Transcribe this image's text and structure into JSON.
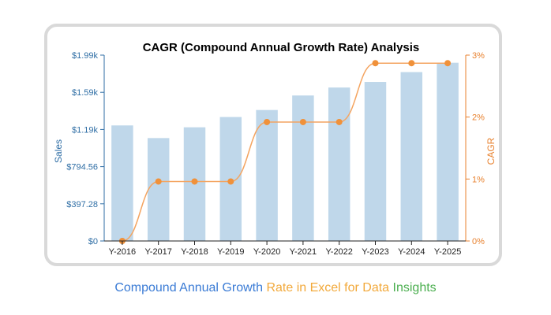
{
  "caption": {
    "part1": "Compound Annual Growth ",
    "part2": "Rate in Excel for Data ",
    "part3": "Insights",
    "colors": [
      "#3a7bd5",
      "#f2a93b",
      "#4caf50"
    ]
  },
  "colors": {
    "bar": "#bfd7ea",
    "line": "#f4a460",
    "marker": "#f0913a",
    "left_axis": "#2f6ea5",
    "right_axis": "#e8822f"
  },
  "chart_data": {
    "type": "bar",
    "title": "CAGR (Compound Annual Growth Rate) Analysis",
    "categories": [
      "Y-2016",
      "Y-2017",
      "Y-2018",
      "Y-2019",
      "Y-2020",
      "Y-2021",
      "Y-2022",
      "Y-2023",
      "Y-2024",
      "Y-2025"
    ],
    "ylabel": "Sales",
    "y2label": "CAGR",
    "ylim": [
      0,
      1986.4
    ],
    "y2lim": [
      0,
      3
    ],
    "y_ticks": [
      "$0",
      "$397.28",
      "$794.56",
      "$1.19k",
      "$1.59k",
      "$1.99k"
    ],
    "y2_ticks": [
      "0%",
      "1%",
      "2%",
      "3%"
    ],
    "series": [
      {
        "type": "bar",
        "axis": "left",
        "values": [
          1235,
          1100,
          1215,
          1325,
          1400,
          1555,
          1640,
          1700,
          1805,
          1905
        ]
      },
      {
        "type": "line",
        "axis": "right",
        "smooth": true,
        "values": [
          0,
          0.96,
          0.96,
          0.96,
          1.92,
          1.92,
          1.92,
          2.87,
          2.87,
          2.87
        ]
      }
    ],
    "grid": false
  }
}
